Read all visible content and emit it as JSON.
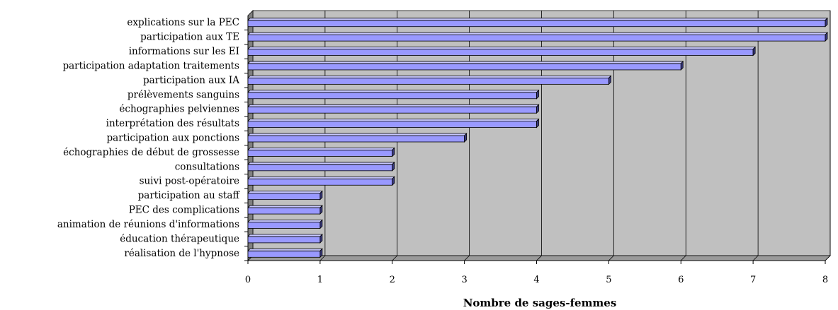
{
  "chart_data": {
    "type": "bar",
    "orientation": "horizontal",
    "style": "3d",
    "categories": [
      "explications sur la PEC",
      "participation aux TE",
      "informations sur les EI",
      "participation adaptation traitements",
      "participation aux IA",
      "prélèvements sanguins",
      "échographies pelviennes",
      "interprétation des résultats",
      "participation aux ponctions",
      "échographies de début de grossesse",
      "consultations",
      "suivi post-opératoire",
      "participation au staff",
      "PEC des complications",
      "animation de réunions d'informations",
      "éducation thérapeutique",
      "réalisation de l'hypnose"
    ],
    "values": [
      8,
      8,
      7,
      6,
      5,
      4,
      4,
      4,
      3,
      2,
      2,
      2,
      1,
      1,
      1,
      1,
      1
    ],
    "xlabel": "Nombre de sages-femmes",
    "ylabel": "",
    "xlim": [
      0,
      8
    ],
    "x_ticks": [
      "0",
      "1",
      "2",
      "3",
      "4",
      "5",
      "6",
      "7",
      "8"
    ],
    "grid": true,
    "legend": "none",
    "colors": {
      "bar": "#9999ff",
      "bar_top": "#c8c8ff",
      "bar_side": "#3a3a80",
      "bar_stroke": "#000000",
      "plot_back": "#c0c0c0",
      "plot_floor": "#808080",
      "grid": "#000000"
    }
  }
}
